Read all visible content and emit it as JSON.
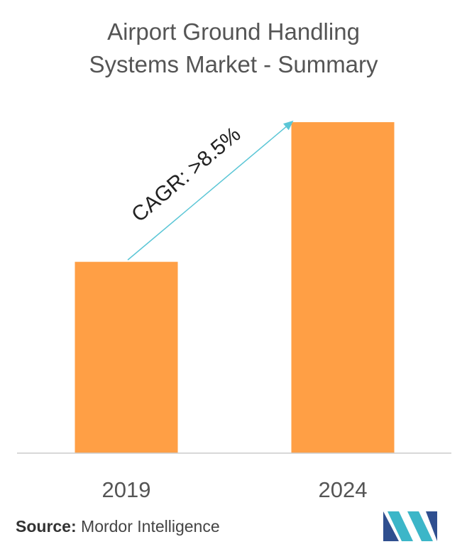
{
  "title_lines": [
    "Airport Ground Handling",
    "Systems Market - Summary"
  ],
  "chart_data": {
    "type": "bar",
    "title": "Airport Ground Handling Systems Market - Summary",
    "categories": [
      "2019",
      "2024"
    ],
    "values": [
      1.0,
      1.73
    ],
    "annotation": "CAGR: >8.5%",
    "bar_color": "#FF9F45",
    "axis_color": "#CCCCCC",
    "arrow_color": "#5BC6D6",
    "grid": false,
    "legend": "none"
  },
  "source": {
    "label": "Source:",
    "text": "Mordor Intelligence"
  },
  "logo": {
    "name": "mordor-intelligence-logo",
    "colors": [
      "#2F4F8F",
      "#3CB6C8"
    ]
  }
}
